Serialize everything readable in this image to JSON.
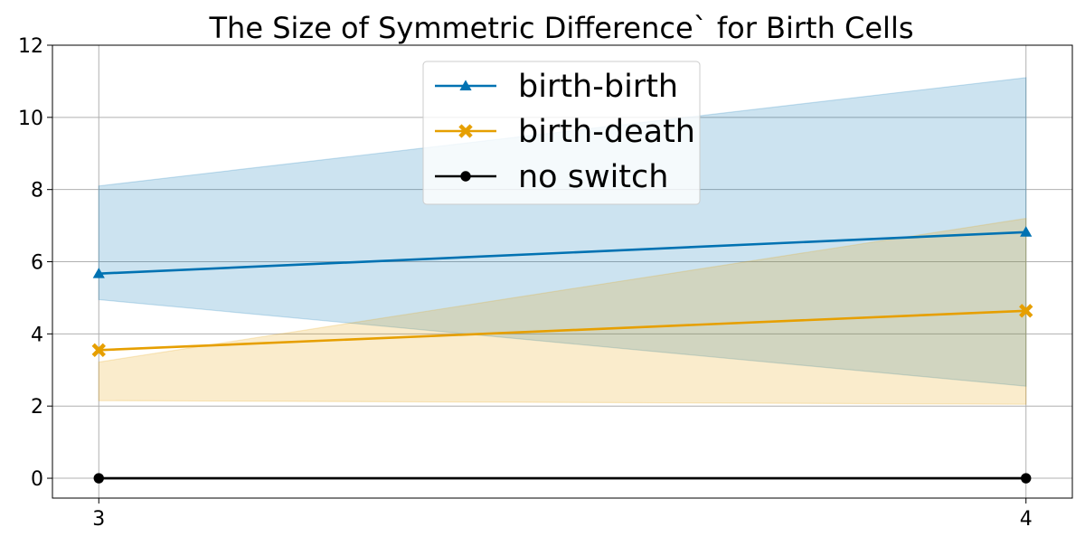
{
  "chart_data": {
    "type": "line",
    "title": "The Size of Symmetric Difference` for Birth Cells",
    "xlabel": "",
    "ylabel": "",
    "x": [
      3,
      4
    ],
    "xticks": [
      "3",
      "4"
    ],
    "xlim": [
      2.95,
      4.05
    ],
    "ylim": [
      -0.55,
      12
    ],
    "yticks": [
      "0",
      "2",
      "4",
      "6",
      "8",
      "10",
      "12"
    ],
    "ytick_values": [
      0,
      2,
      4,
      6,
      8,
      10,
      12
    ],
    "grid": true,
    "legend_position": "upper center",
    "series": [
      {
        "name": "birth-birth",
        "values": [
          5.67,
          6.82
        ],
        "lower": [
          4.95,
          2.55
        ],
        "upper": [
          8.1,
          11.1
        ],
        "color": "#0072b2",
        "marker": "triangle"
      },
      {
        "name": "birth-death",
        "values": [
          3.55,
          4.64
        ],
        "lower": [
          2.15,
          2.05
        ],
        "upper": [
          3.22,
          7.2
        ],
        "color": "#e69f00",
        "marker": "x"
      },
      {
        "name": "no switch",
        "values": [
          0,
          0
        ],
        "lower": [
          -0.02,
          -0.02
        ],
        "upper": [
          0.02,
          0.02
        ],
        "color": "#000000",
        "marker": "circle"
      }
    ]
  }
}
